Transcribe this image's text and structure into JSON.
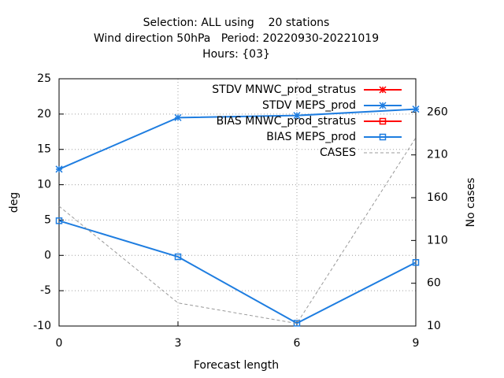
{
  "chart_data": {
    "type": "line",
    "title": [
      "Selection: ALL using    20 stations",
      "Wind direction 50hPa   Period: 20220930-20221019",
      "Hours: {03}"
    ],
    "xlabel": "Forecast length",
    "ylabel": "deg",
    "y2label": "No cases",
    "x": [
      0,
      3,
      6,
      9
    ],
    "xlim": [
      0,
      9
    ],
    "xticks": [
      0,
      3,
      6,
      9
    ],
    "ylim": [
      -10,
      25
    ],
    "yticks": [
      -10,
      -5,
      0,
      5,
      10,
      15,
      20,
      25
    ],
    "y2lim": [
      10,
      299
    ],
    "y2ticks": [
      10,
      60,
      110,
      160,
      210,
      260
    ],
    "grid": true,
    "legend": "top-right",
    "series": [
      {
        "name": "STDV MNWC_prod_stratus",
        "color": "#ff0000",
        "marker": "star",
        "values": [
          null,
          null,
          null,
          null
        ]
      },
      {
        "name": "STDV MEPS_prod",
        "color": "#1e7de0",
        "marker": "star",
        "values": [
          12.2,
          19.5,
          19.8,
          20.7
        ]
      },
      {
        "name": "BIAS MNWC_prod_stratus",
        "color": "#ff0000",
        "marker": "square",
        "values": [
          null,
          null,
          null,
          null
        ]
      },
      {
        "name": "BIAS MEPS_prod",
        "color": "#1e7de0",
        "marker": "square",
        "values": [
          4.9,
          -0.2,
          -9.6,
          -1.0
        ]
      },
      {
        "name": "CASES",
        "color": "#999999",
        "marker": "dash",
        "axis": "y2",
        "values": [
          150,
          37,
          13,
          230
        ]
      }
    ]
  }
}
